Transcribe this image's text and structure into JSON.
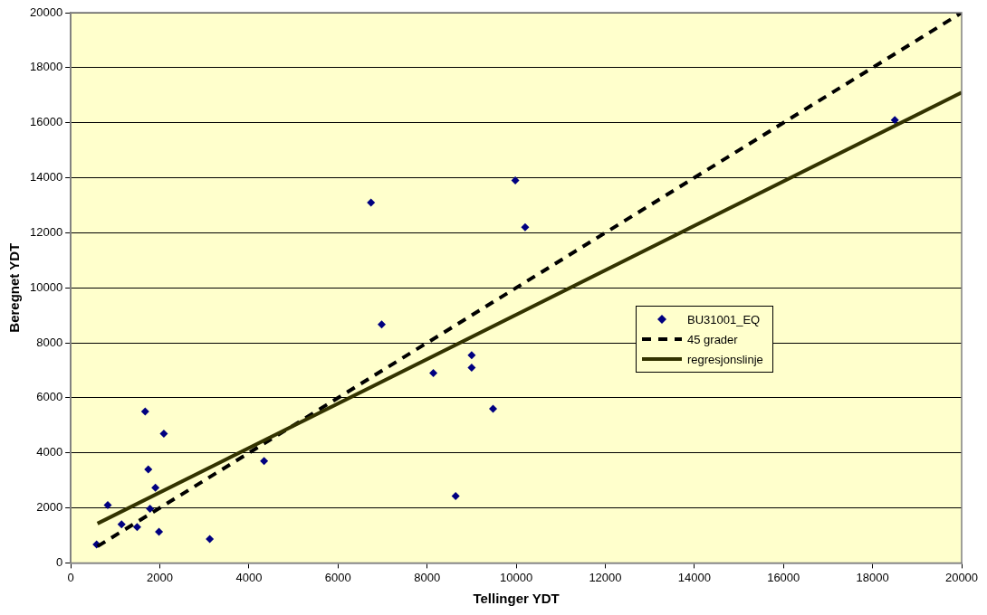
{
  "chart_data": {
    "type": "scatter",
    "xlabel": "Tellinger YDT",
    "ylabel": "Beregnet YDT",
    "xlim": [
      0,
      20000
    ],
    "xticks": [
      0,
      2000,
      4000,
      6000,
      8000,
      10000,
      12000,
      14000,
      16000,
      18000,
      20000
    ],
    "ylim": [
      0,
      20000
    ],
    "yticks": [
      0,
      2000,
      4000,
      6000,
      8000,
      10000,
      12000,
      14000,
      16000,
      18000,
      20000
    ],
    "grid": "y",
    "legend": "right",
    "series": [
      {
        "name": "BU31001_EQ",
        "color": "#000080",
        "marker": "diamond",
        "x": [
          580,
          830,
          1140,
          1490,
          1670,
          1740,
          1780,
          1900,
          1980,
          2090,
          3120,
          4340,
          6740,
          6980,
          8140,
          8640,
          9000,
          9000,
          9480,
          9980,
          10200,
          18500
        ],
        "values": [
          670,
          2100,
          1400,
          1300,
          5500,
          3400,
          1970,
          2730,
          1130,
          4700,
          870,
          3700,
          13100,
          8670,
          6900,
          2430,
          7550,
          7100,
          5600,
          13900,
          12200,
          16100
        ]
      },
      {
        "name": "45 grader",
        "type": "line",
        "color": "#000000",
        "line_style": "dashed",
        "marker": "none",
        "x": [
          600,
          20000
        ],
        "values": [
          600,
          20000
        ]
      },
      {
        "name": "regresjonslinje",
        "type": "line",
        "color": "#333300",
        "line_style": "solid",
        "marker": "none",
        "x": [
          600,
          20000
        ],
        "values": [
          1430,
          17100
        ]
      }
    ]
  }
}
